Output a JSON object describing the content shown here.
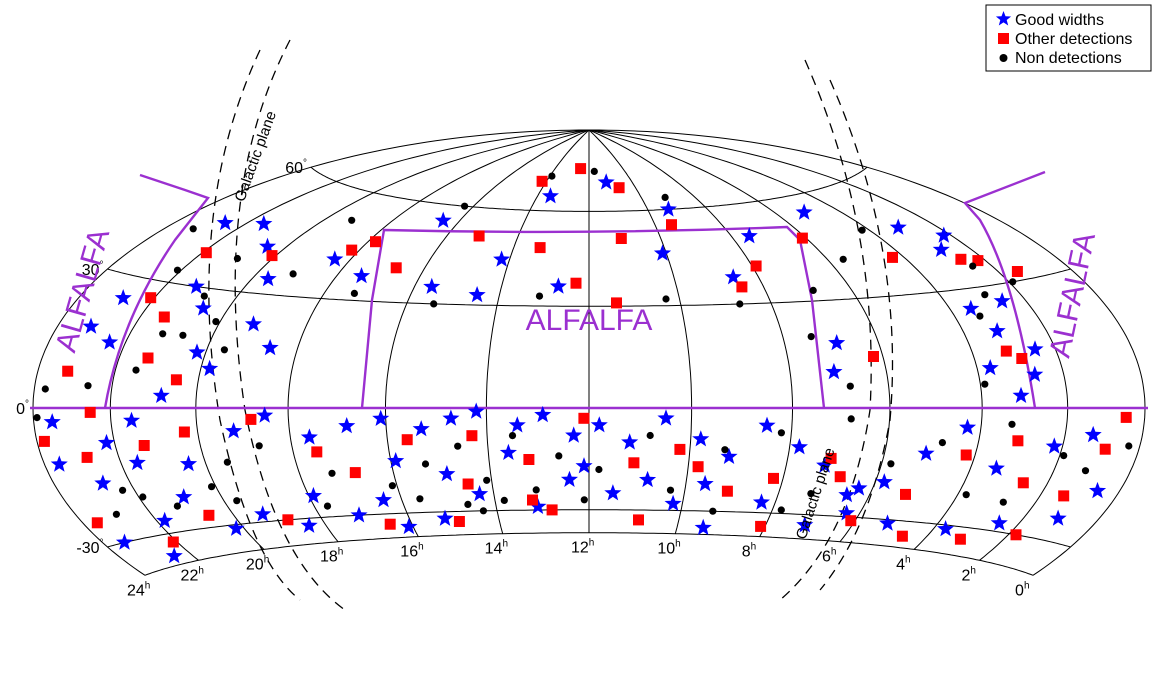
{
  "chart_data": {
    "type": "scatter",
    "projection": "hammer-aitoff",
    "title": "",
    "xlabel": "",
    "ylabel": "",
    "ra_ticks": [
      "24",
      "22",
      "20",
      "18",
      "16",
      "14",
      "12",
      "10",
      "8",
      "6",
      "4",
      "2",
      "0"
    ],
    "ra_unit": "h",
    "dec_ticks": [
      "60",
      "30",
      "0",
      "-30"
    ],
    "dec_unit": "°",
    "dec_range": [
      -37,
      90
    ],
    "legend": {
      "position": "top-right",
      "entries": [
        {
          "label": "Good widths",
          "marker": "star",
          "color": "#0000ff"
        },
        {
          "label": "Other detections",
          "marker": "square",
          "color": "#ff0000"
        },
        {
          "label": "Non detections",
          "marker": "circle",
          "color": "#000000"
        }
      ]
    },
    "annotations": {
      "alfalfa_main": "ALFALFA",
      "alfalfa_left": "ALFALFA",
      "alfalfa_right": "ALFALFA",
      "galactic_plane_north": "Galactic plane",
      "galactic_plane_south": "Galactic plane"
    },
    "colors": {
      "good": "#0000ff",
      "other": "#ff0000",
      "non": "#000000",
      "alfalfa": "#9b30d0"
    },
    "series": [
      {
        "name": "Good widths",
        "points": [
          [
            11.2,
            70
          ],
          [
            13.5,
            65
          ],
          [
            9.3,
            60
          ],
          [
            16.5,
            55
          ],
          [
            21.5,
            47
          ],
          [
            22.6,
            45
          ],
          [
            20.5,
            42
          ],
          [
            18.4,
            41
          ],
          [
            14.2,
            44
          ],
          [
            10.1,
            46
          ],
          [
            7.5,
            50
          ],
          [
            5.1,
            55
          ],
          [
            3.1,
            47
          ],
          [
            2.8,
            40
          ],
          [
            2.2,
            43
          ],
          [
            15.6,
            35
          ],
          [
            14.5,
            33
          ],
          [
            12.7,
            36
          ],
          [
            8.6,
            38
          ],
          [
            17.4,
            37
          ],
          [
            19.6,
            34
          ],
          [
            21.2,
            30
          ],
          [
            20.6,
            25
          ],
          [
            19.2,
            22
          ],
          [
            18.6,
            16
          ],
          [
            20.2,
            14
          ],
          [
            19.8,
            10
          ],
          [
            22.8,
            25
          ],
          [
            23.1,
            18
          ],
          [
            22.4,
            15
          ],
          [
            20.8,
            3
          ],
          [
            21.5,
            -3
          ],
          [
            22.2,
            -8
          ],
          [
            23.5,
            -3
          ],
          [
            23.6,
            -12
          ],
          [
            22.7,
            -17
          ],
          [
            21.6,
            -13
          ],
          [
            20.4,
            -14
          ],
          [
            19.2,
            -6
          ],
          [
            18.5,
            -2
          ],
          [
            17.6,
            -8
          ],
          [
            16.8,
            -5
          ],
          [
            16.1,
            -3
          ],
          [
            15.3,
            -6
          ],
          [
            14.7,
            -3
          ],
          [
            14.2,
            -1
          ],
          [
            13.4,
            -5
          ],
          [
            12.9,
            -2
          ],
          [
            12.3,
            -8
          ],
          [
            11.8,
            -5
          ],
          [
            11.2,
            -10
          ],
          [
            10.5,
            -3
          ],
          [
            9.8,
            -9
          ],
          [
            9.2,
            -14
          ],
          [
            8.5,
            -5
          ],
          [
            7.8,
            -11
          ],
          [
            7.2,
            -16
          ],
          [
            6.3,
            -22
          ],
          [
            5.8,
            -20
          ],
          [
            5.1,
            -12
          ],
          [
            4.3,
            -5
          ],
          [
            3.4,
            -15
          ],
          [
            2.2,
            -9
          ],
          [
            1.3,
            -6
          ],
          [
            0.6,
            -18
          ],
          [
            1.1,
            -25
          ],
          [
            2.5,
            -28
          ],
          [
            3.7,
            -31
          ],
          [
            5.2,
            -31
          ],
          [
            6.3,
            -29
          ],
          [
            7.1,
            -33
          ],
          [
            9.4,
            -35
          ],
          [
            10.2,
            -28
          ],
          [
            11.5,
            -25
          ],
          [
            12.4,
            -21
          ],
          [
            13.1,
            -29
          ],
          [
            14.3,
            -25
          ],
          [
            15.2,
            -32
          ],
          [
            16.1,
            -34
          ],
          [
            16.4,
            -26
          ],
          [
            17.1,
            -30
          ],
          [
            17.9,
            -24
          ],
          [
            18.4,
            -32
          ],
          [
            19.3,
            -28
          ],
          [
            20.2,
            -31
          ],
          [
            20.9,
            -22
          ],
          [
            21.8,
            -27
          ],
          [
            22.5,
            -35
          ],
          [
            23.4,
            -30
          ],
          [
            2.7,
            8
          ],
          [
            2.5,
            14
          ],
          [
            3.2,
            19
          ],
          [
            3.5,
            25
          ],
          [
            2.6,
            26
          ],
          [
            3.1,
            3
          ],
          [
            3.7,
            10
          ],
          [
            7.1,
            10
          ],
          [
            6.9,
            18
          ],
          [
            6.5,
            -24
          ],
          [
            15.9,
            -15
          ],
          [
            14.9,
            -19
          ],
          [
            13.6,
            -13
          ],
          [
            12.1,
            -17
          ],
          [
            10.8,
            -21
          ],
          [
            9.6,
            -22
          ],
          [
            8.3,
            -27
          ]
        ]
      },
      {
        "name": "Other detections",
        "points": [
          [
            12.5,
            75
          ],
          [
            14.2,
            70
          ],
          [
            10.7,
            68
          ],
          [
            9.5,
            55
          ],
          [
            11.1,
            51
          ],
          [
            13.3,
            48
          ],
          [
            15.1,
            51
          ],
          [
            17.8,
            47
          ],
          [
            6.1,
            48
          ],
          [
            4.3,
            40
          ],
          [
            2.6,
            37
          ],
          [
            2.2,
            36
          ],
          [
            1.5,
            32
          ],
          [
            7.9,
            41
          ],
          [
            8.5,
            35
          ],
          [
            11.4,
            31
          ],
          [
            12.3,
            37
          ],
          [
            16.7,
            40
          ],
          [
            18.2,
            44
          ],
          [
            20.1,
            40
          ],
          [
            21.9,
            38
          ],
          [
            22.1,
            26
          ],
          [
            21.4,
            22
          ],
          [
            23.2,
            8
          ],
          [
            22.5,
            -1
          ],
          [
            23.8,
            -7
          ],
          [
            22.8,
            -11
          ],
          [
            21.3,
            -9
          ],
          [
            20.3,
            -6
          ],
          [
            18.8,
            -3
          ],
          [
            17.5,
            -12
          ],
          [
            16.8,
            -18
          ],
          [
            15.6,
            -9
          ],
          [
            14.3,
            -8
          ],
          [
            13.2,
            -15
          ],
          [
            12.1,
            -3
          ],
          [
            11.1,
            -16
          ],
          [
            10.2,
            -12
          ],
          [
            9.1,
            -24
          ],
          [
            8.2,
            -20
          ],
          [
            6.8,
            -19
          ],
          [
            5.2,
            -23
          ],
          [
            4.2,
            -12
          ],
          [
            3.1,
            -8
          ],
          [
            2.6,
            -18
          ],
          [
            1.4,
            -20
          ],
          [
            0.9,
            -9
          ],
          [
            0.5,
            -2
          ],
          [
            1.8,
            -30
          ],
          [
            3.1,
            -33
          ],
          [
            4.6,
            -34
          ],
          [
            6.1,
            -31
          ],
          [
            8.1,
            -34
          ],
          [
            10.9,
            -33
          ],
          [
            12.8,
            -30
          ],
          [
            14.9,
            -33
          ],
          [
            16.5,
            -33
          ],
          [
            18.8,
            -30
          ],
          [
            20.6,
            -27
          ],
          [
            22.1,
            -32
          ],
          [
            23.6,
            -25
          ],
          [
            3.2,
            14
          ],
          [
            2.9,
            12
          ],
          [
            6.2,
            14
          ],
          [
            21.3,
            12
          ],
          [
            20.5,
            7
          ],
          [
            13.2,
            -27
          ],
          [
            14.5,
            -22
          ],
          [
            7.1,
            -14
          ],
          [
            9.8,
            -17
          ]
        ]
      },
      {
        "name": "Non detections",
        "points": [
          [
            13.9,
            72
          ],
          [
            11.7,
            74
          ],
          [
            9.1,
            64
          ],
          [
            16.3,
            60
          ],
          [
            19.2,
            52
          ],
          [
            23.2,
            42
          ],
          [
            22.1,
            33
          ],
          [
            19.1,
            36
          ],
          [
            17.3,
            32
          ],
          [
            15.4,
            30
          ],
          [
            13.1,
            33
          ],
          [
            10.3,
            32
          ],
          [
            8.7,
            30
          ],
          [
            6.9,
            33
          ],
          [
            5.6,
            41
          ],
          [
            4.2,
            48
          ],
          [
            2.5,
            35
          ],
          [
            1.9,
            30
          ],
          [
            20.9,
            38
          ],
          [
            21.2,
            18
          ],
          [
            20.1,
            22
          ],
          [
            19.6,
            15
          ],
          [
            20.7,
            18
          ],
          [
            22.6,
            5
          ],
          [
            23.7,
            4
          ],
          [
            23.9,
            -2
          ],
          [
            22.3,
            -19
          ],
          [
            21.9,
            -21
          ],
          [
            21.2,
            -24
          ],
          [
            20.1,
            -20
          ],
          [
            19.5,
            -14
          ],
          [
            18.7,
            -10
          ],
          [
            17.3,
            -18
          ],
          [
            16.1,
            -22
          ],
          [
            15.3,
            -16
          ],
          [
            14.6,
            -11
          ],
          [
            14.1,
            -21
          ],
          [
            13.5,
            -8
          ],
          [
            13.1,
            -24
          ],
          [
            12.6,
            -14
          ],
          [
            11.8,
            -18
          ],
          [
            10.8,
            -8
          ],
          [
            10.3,
            -24
          ],
          [
            9.3,
            -12
          ],
          [
            8.2,
            -7
          ],
          [
            7.3,
            -24
          ],
          [
            6.8,
            -3
          ],
          [
            5.8,
            -15
          ],
          [
            4.8,
            -9
          ],
          [
            3.8,
            -22
          ],
          [
            3.3,
            -4
          ],
          [
            2.8,
            -23
          ],
          [
            1.9,
            -11
          ],
          [
            1.2,
            -14
          ],
          [
            0.3,
            -8
          ],
          [
            7.8,
            -29
          ],
          [
            9.3,
            -30
          ],
          [
            12.1,
            -27
          ],
          [
            15.6,
            -26
          ],
          [
            17.7,
            -27
          ],
          [
            19.7,
            -24
          ],
          [
            22.9,
            -24
          ],
          [
            3.9,
            6
          ],
          [
            3.4,
            23
          ],
          [
            2.9,
            28
          ],
          [
            6.8,
            6
          ],
          [
            7.4,
            20
          ],
          [
            20.8,
            28
          ],
          [
            21.5,
            9
          ],
          [
            14.3,
            -30
          ],
          [
            14.6,
            -28
          ],
          [
            13.8,
            -27
          ]
        ]
      }
    ]
  }
}
